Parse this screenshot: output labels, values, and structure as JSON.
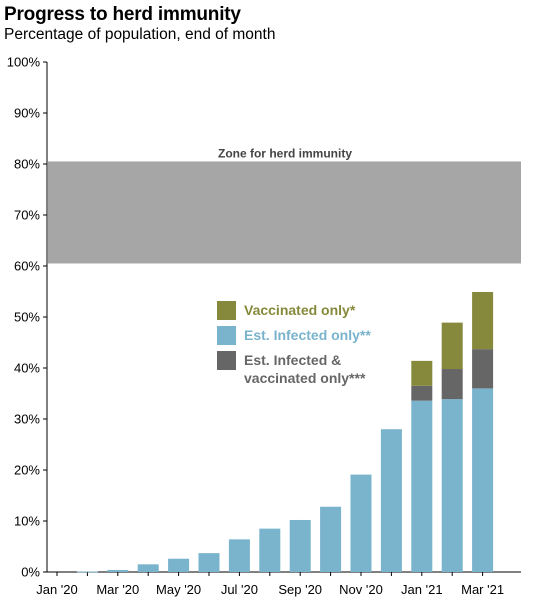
{
  "title": "Progress to herd immunity",
  "subtitle": "Percentage of population, end of month",
  "chart_data": {
    "type": "bar",
    "stacked": true,
    "title": "Progress to herd immunity",
    "subtitle": "Percentage of population, end of month",
    "xlabel": "",
    "ylabel": "",
    "ylim": [
      0,
      100
    ],
    "yticks": [
      0,
      10,
      20,
      30,
      40,
      50,
      60,
      70,
      80,
      90,
      100
    ],
    "ytick_labels": [
      "0%",
      "10%",
      "20%",
      "30%",
      "40%",
      "50%",
      "60%",
      "70%",
      "80%",
      "90%",
      "100%"
    ],
    "categories": [
      "Jan '20",
      "Feb '20",
      "Mar '20",
      "Apr '20",
      "May '20",
      "Jun '20",
      "Jul '20",
      "Aug '20",
      "Sep '20",
      "Oct '20",
      "Nov '20",
      "Dec '20",
      "Jan '21",
      "Feb '21",
      "Mar '21"
    ],
    "xtick_labels": [
      "Jan '20",
      "Mar '20",
      "May '20",
      "Jul '20",
      "Sep '20",
      "Nov '20",
      "Jan '21",
      "Mar '21"
    ],
    "series": [
      {
        "name": "Est. Infected only**",
        "color": "#79b3cc",
        "values": [
          0,
          0.1,
          0.4,
          1.5,
          2.6,
          3.7,
          6.4,
          8.5,
          10.2,
          12.8,
          19.1,
          28.0,
          33.6,
          33.9,
          36.0
        ]
      },
      {
        "name": "Est. Infected & vaccinated only***",
        "color": "#666666",
        "values": [
          0,
          0,
          0,
          0,
          0,
          0,
          0,
          0,
          0,
          0,
          0,
          0,
          2.9,
          5.9,
          7.7
        ]
      },
      {
        "name": "Vaccinated only*",
        "color": "#86893b",
        "values": [
          0,
          0,
          0,
          0,
          0,
          0,
          0,
          0,
          0,
          0,
          0,
          0,
          4.9,
          9.1,
          11.2
        ]
      }
    ],
    "zone": {
      "label": "Zone for herd immunity",
      "from": 60.5,
      "to": 80.5,
      "color": "#a6a6a6"
    },
    "legend": {
      "placement": "center-right",
      "items": [
        {
          "lines": [
            "Vaccinated only*"
          ],
          "color": "#86893b",
          "text_color": "#86893b"
        },
        {
          "lines": [
            "Est. Infected only**"
          ],
          "color": "#79b3cc",
          "text_color": "#79b3cc"
        },
        {
          "lines": [
            "Est. Infected &",
            "vaccinated only***"
          ],
          "color": "#666666",
          "text_color": "#666666"
        }
      ]
    },
    "grid": false
  }
}
